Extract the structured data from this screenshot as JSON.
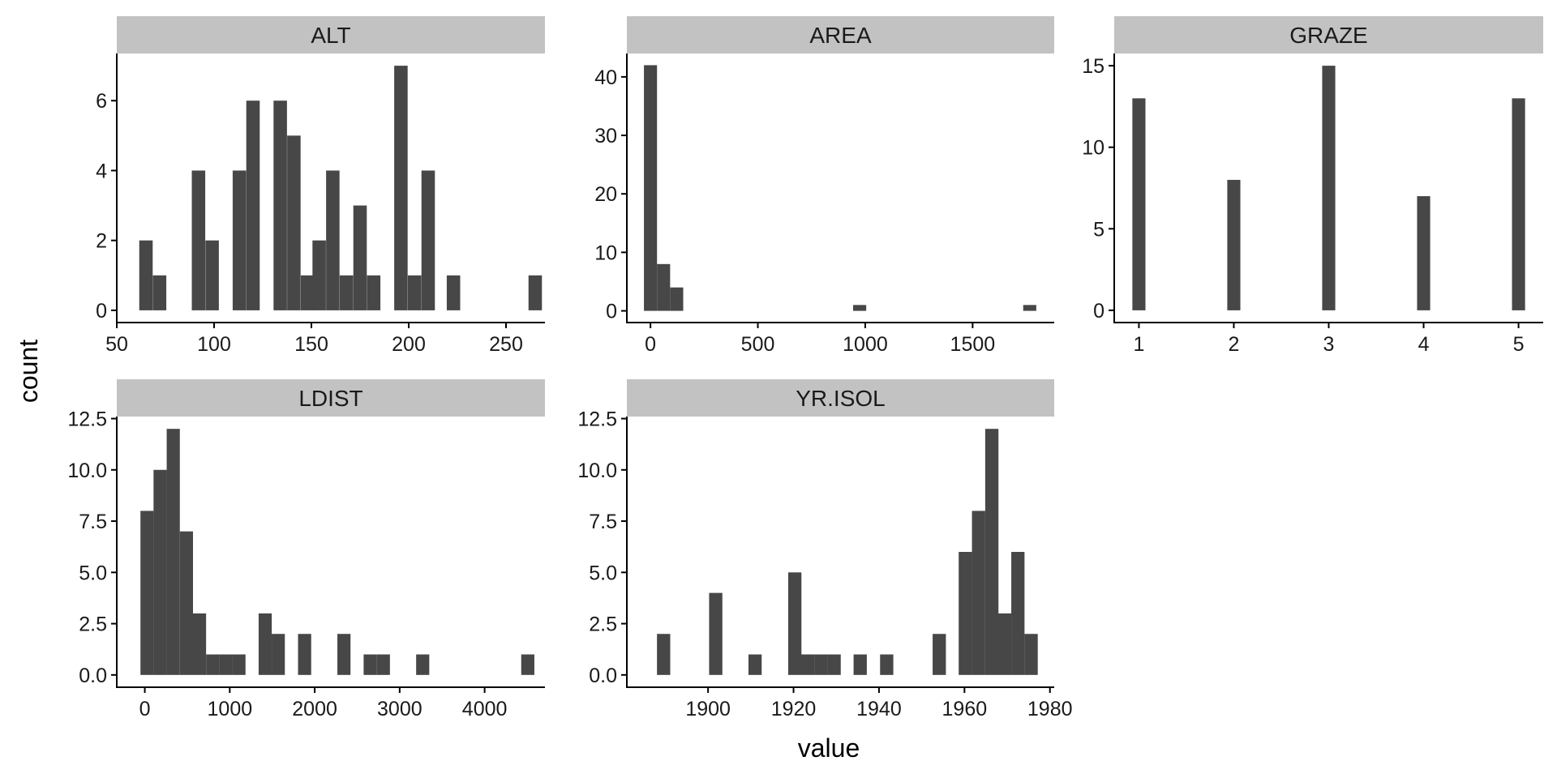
{
  "chart_data": {
    "type": "bar",
    "xlabel": "value",
    "ylabel": "count",
    "bar_color": "#474747",
    "strip_color": "#c2c2c2",
    "facets": [
      {
        "name": "ALT",
        "xlim": [
          50,
          270
        ],
        "ylim": [
          -0.35,
          7.35
        ],
        "xticks": [
          50,
          100,
          150,
          200,
          250
        ],
        "yticks": [
          0,
          2,
          4,
          6
        ],
        "ytick_labels": [
          "0",
          "2",
          "4",
          "6"
        ],
        "binwidth": 6.9,
        "bins": [
          {
            "x": 65,
            "count": 2
          },
          {
            "x": 72,
            "count": 1
          },
          {
            "x": 79,
            "count": 0
          },
          {
            "x": 86,
            "count": 0
          },
          {
            "x": 92,
            "count": 4
          },
          {
            "x": 99,
            "count": 2
          },
          {
            "x": 106,
            "count": 0
          },
          {
            "x": 113,
            "count": 4
          },
          {
            "x": 120,
            "count": 6
          },
          {
            "x": 127,
            "count": 0
          },
          {
            "x": 134,
            "count": 6
          },
          {
            "x": 141,
            "count": 5
          },
          {
            "x": 148,
            "count": 1
          },
          {
            "x": 154,
            "count": 2
          },
          {
            "x": 161,
            "count": 4
          },
          {
            "x": 168,
            "count": 1
          },
          {
            "x": 175,
            "count": 3
          },
          {
            "x": 182,
            "count": 1
          },
          {
            "x": 189,
            "count": 0
          },
          {
            "x": 196,
            "count": 7
          },
          {
            "x": 203,
            "count": 1
          },
          {
            "x": 210,
            "count": 4
          },
          {
            "x": 217,
            "count": 0
          },
          {
            "x": 223,
            "count": 1
          },
          {
            "x": 230,
            "count": 0
          },
          {
            "x": 237,
            "count": 0
          },
          {
            "x": 244,
            "count": 0
          },
          {
            "x": 251,
            "count": 0
          },
          {
            "x": 258,
            "count": 0
          },
          {
            "x": 265,
            "count": 1
          }
        ]
      },
      {
        "name": "AREA",
        "xlim": [
          -110,
          1880
        ],
        "ylim": [
          -2,
          44
        ],
        "xticks": [
          0,
          500,
          1000,
          1500
        ],
        "yticks": [
          0,
          10,
          20,
          30,
          40
        ],
        "ytick_labels": [
          "0",
          "10",
          "20",
          "30",
          "40"
        ],
        "binwidth": 60.9,
        "bins": [
          {
            "x": 0,
            "count": 42
          },
          {
            "x": 61,
            "count": 8
          },
          {
            "x": 122,
            "count": 4
          },
          {
            "x": 974,
            "count": 1
          },
          {
            "x": 1766,
            "count": 1
          }
        ]
      },
      {
        "name": "GRAZE",
        "xlim": [
          0.74,
          5.26
        ],
        "ylim": [
          -0.75,
          15.75
        ],
        "xticks": [
          1,
          2,
          3,
          4,
          5
        ],
        "yticks": [
          0,
          5,
          10,
          15
        ],
        "ytick_labels": [
          "0",
          "5",
          "10",
          "15"
        ],
        "binwidth": 0.1379,
        "bins": [
          {
            "x": 1,
            "count": 13
          },
          {
            "x": 2,
            "count": 8
          },
          {
            "x": 3,
            "count": 15
          },
          {
            "x": 4,
            "count": 7
          },
          {
            "x": 5,
            "count": 13
          }
        ]
      },
      {
        "name": "LDIST",
        "xlim": [
          -330,
          4710
        ],
        "ylim": [
          -0.6,
          12.6
        ],
        "xticks": [
          0,
          1000,
          2000,
          3000,
          4000
        ],
        "yticks": [
          0,
          2.5,
          5,
          7.5,
          10,
          12.5
        ],
        "ytick_labels": [
          "0.0",
          "2.5",
          "5.0",
          "7.5",
          "10.0",
          "12.5"
        ],
        "binwidth": 154.6,
        "bins": [
          {
            "x": 26,
            "count": 8
          },
          {
            "x": 180,
            "count": 10
          },
          {
            "x": 335,
            "count": 12
          },
          {
            "x": 490,
            "count": 7
          },
          {
            "x": 644,
            "count": 3
          },
          {
            "x": 799,
            "count": 1
          },
          {
            "x": 953,
            "count": 1
          },
          {
            "x": 1108,
            "count": 1
          },
          {
            "x": 1417,
            "count": 3
          },
          {
            "x": 1571,
            "count": 2
          },
          {
            "x": 1881,
            "count": 2
          },
          {
            "x": 2344,
            "count": 2
          },
          {
            "x": 2653,
            "count": 1
          },
          {
            "x": 2808,
            "count": 1
          },
          {
            "x": 3271,
            "count": 1
          },
          {
            "x": 4508,
            "count": 1
          }
        ]
      },
      {
        "name": "YR.ISOL",
        "xlim": [
          1881,
          1981
        ],
        "ylim": [
          -0.6,
          12.6
        ],
        "xticks": [
          1900,
          1920,
          1940,
          1960,
          1980
        ],
        "yticks": [
          0,
          2.5,
          5,
          7.5,
          10,
          12.5
        ],
        "ytick_labels": [
          "0.0",
          "2.5",
          "5.0",
          "7.5",
          "10.0",
          "12.5"
        ],
        "binwidth": 3.1,
        "bins": [
          {
            "x": 1889.6,
            "count": 2
          },
          {
            "x": 1901.8,
            "count": 4
          },
          {
            "x": 1911.0,
            "count": 1
          },
          {
            "x": 1920.3,
            "count": 5
          },
          {
            "x": 1923.3,
            "count": 1
          },
          {
            "x": 1926.4,
            "count": 1
          },
          {
            "x": 1929.5,
            "count": 1
          },
          {
            "x": 1935.6,
            "count": 1
          },
          {
            "x": 1941.8,
            "count": 1
          },
          {
            "x": 1954.1,
            "count": 2
          },
          {
            "x": 1960.2,
            "count": 6
          },
          {
            "x": 1963.3,
            "count": 8
          },
          {
            "x": 1966.4,
            "count": 12
          },
          {
            "x": 1969.4,
            "count": 3
          },
          {
            "x": 1972.5,
            "count": 6
          },
          {
            "x": 1975.6,
            "count": 2
          }
        ]
      }
    ]
  }
}
